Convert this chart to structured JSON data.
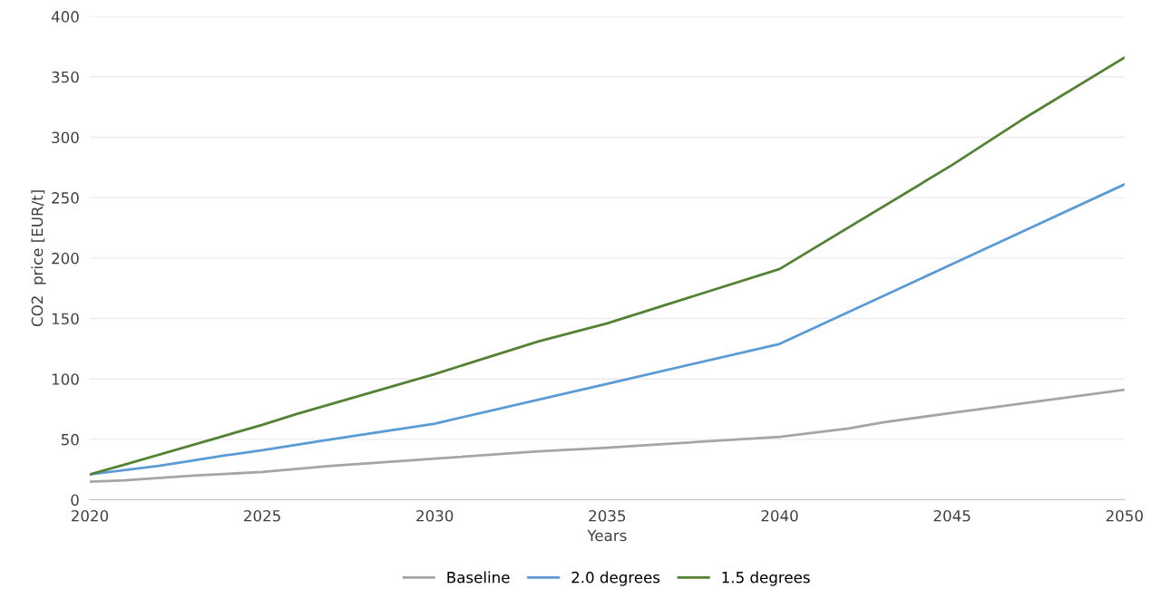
{
  "chart_data": {
    "type": "line",
    "xlabel": "Years",
    "ylabel": "CO2  price [EUR/t]",
    "xlim": [
      2020,
      2050
    ],
    "xticks": [
      2020,
      2025,
      2030,
      2035,
      2040,
      2045,
      2050
    ],
    "ylim": [
      0,
      400
    ],
    "yticks": [
      0,
      50,
      100,
      150,
      200,
      250,
      300,
      350,
      400
    ],
    "grid": "y",
    "legend": "bottom",
    "marker": "none",
    "line_style": "solid",
    "series": [
      {
        "name": "Baseline",
        "color": "#a5a5a5",
        "x": [
          2020,
          2021,
          2023,
          2025,
          2027,
          2030,
          2033,
          2035,
          2036,
          2040,
          2042,
          2043,
          2045,
          2050
        ],
        "values": [
          15,
          16,
          20,
          23,
          28,
          34,
          40,
          43,
          45,
          52,
          59,
          64,
          72,
          91
        ]
      },
      {
        "name": "2.0 degrees",
        "color": "#5b9bd5",
        "x": [
          2020,
          2022,
          2024,
          2025,
          2027,
          2030,
          2035,
          2040,
          2045,
          2050
        ],
        "values": [
          21,
          28,
          37,
          41,
          50,
          63,
          96,
          129,
          195,
          261
        ]
      },
      {
        "name": "1.5 degrees",
        "color": "#548235",
        "x": [
          2020,
          2021,
          2025,
          2026,
          2030,
          2033,
          2035,
          2040,
          2045,
          2047,
          2050
        ],
        "values": [
          21,
          29,
          62,
          71,
          104,
          131,
          146,
          191,
          277,
          314,
          366
        ]
      }
    ]
  }
}
